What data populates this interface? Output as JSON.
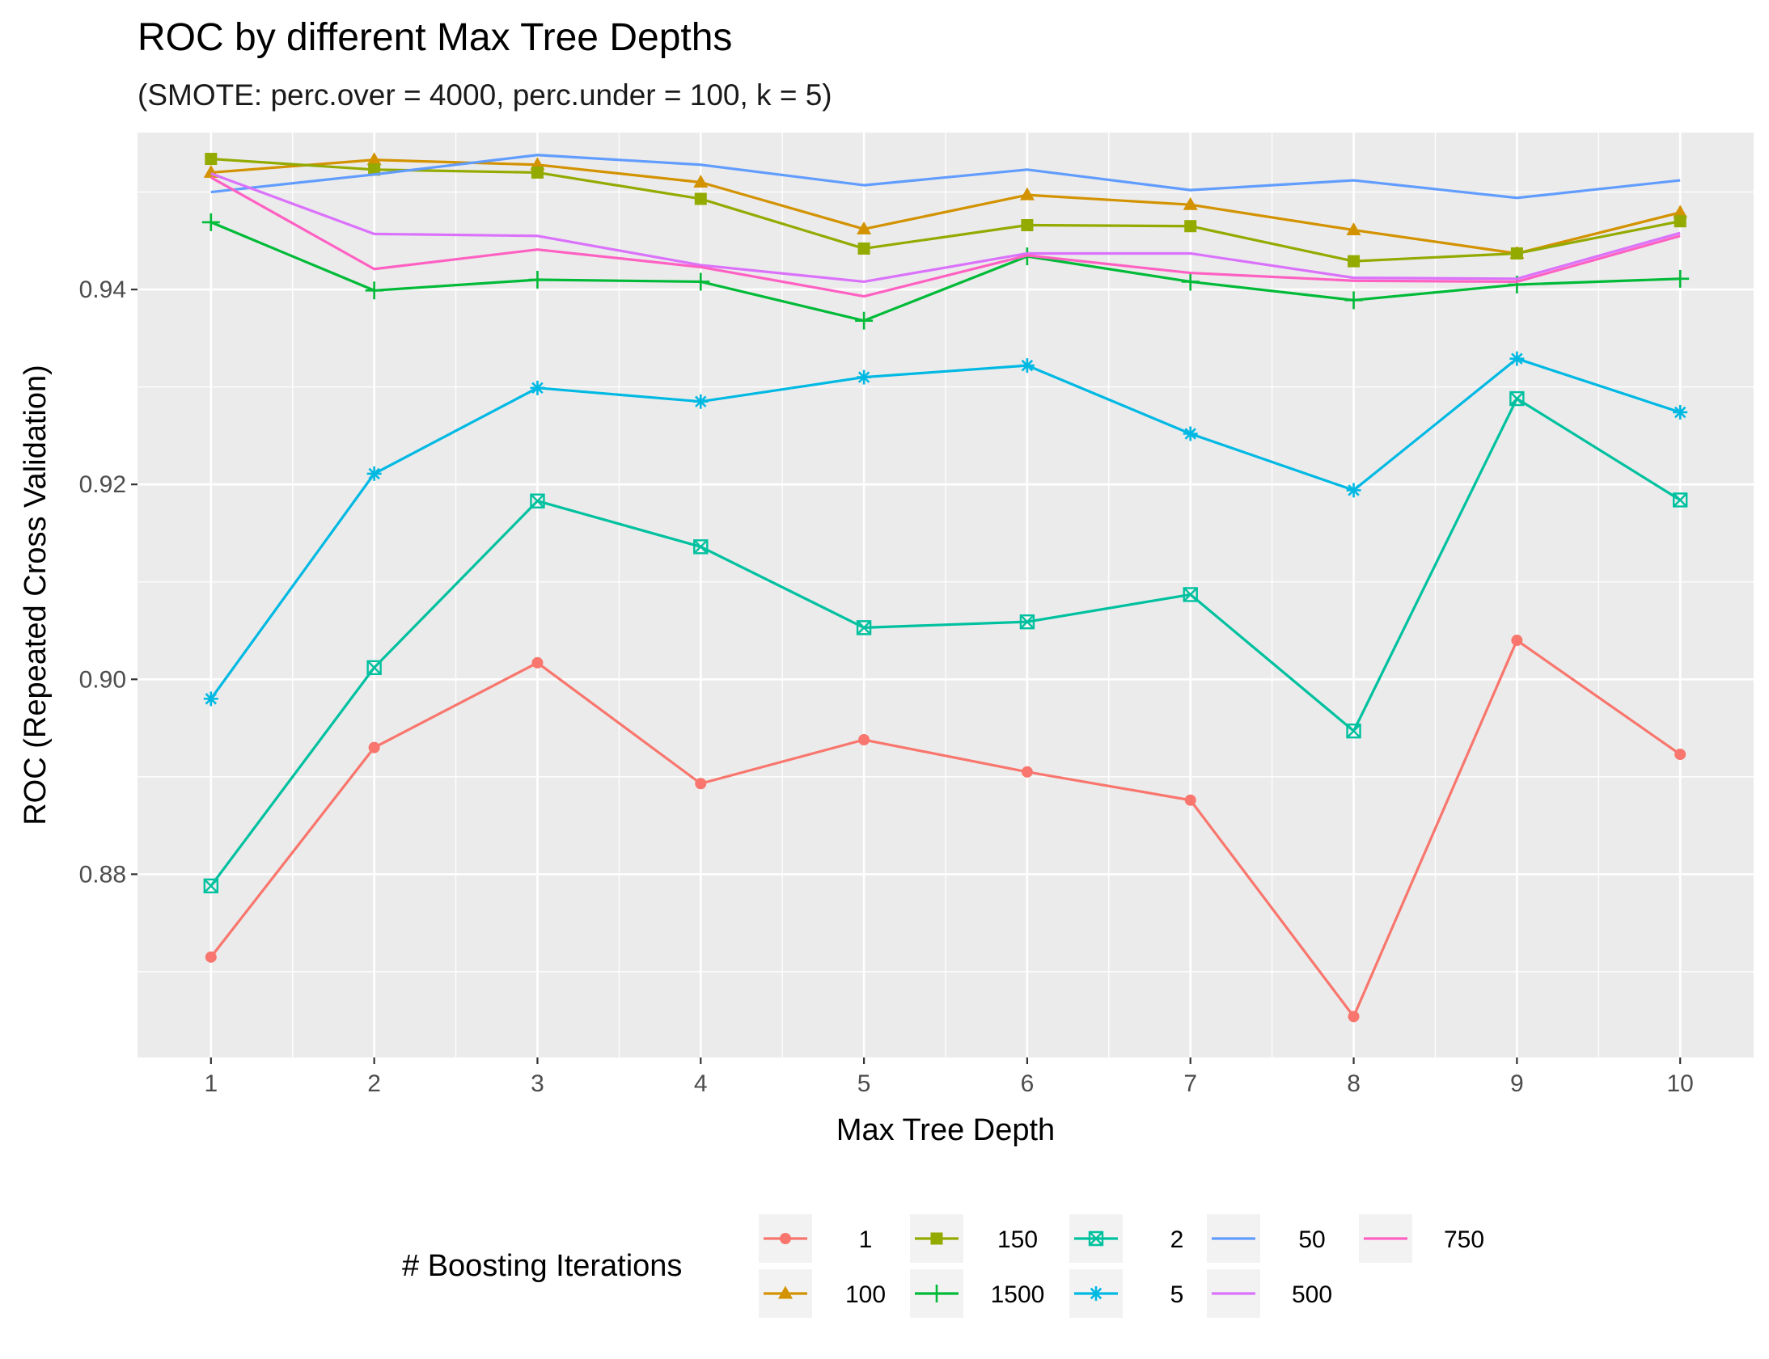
{
  "chart_data": {
    "type": "line",
    "title": "ROC by different Max Tree Depths",
    "subtitle": "(SMOTE: perc.over = 4000, perc.under = 100, k = 5)",
    "xlabel": "Max Tree Depth",
    "ylabel": "ROC (Repeated Cross Validation)",
    "x": [
      1,
      2,
      3,
      4,
      5,
      6,
      7,
      8,
      9,
      10
    ],
    "x_ticks": [
      "1",
      "2",
      "3",
      "4",
      "5",
      "6",
      "7",
      "8",
      "9",
      "10"
    ],
    "y_ticks": [
      "0.88",
      "0.90",
      "0.92",
      "0.94"
    ],
    "y_tick_values": [
      0.88,
      0.9,
      0.92,
      0.94
    ],
    "xlim": [
      0.55,
      10.45
    ],
    "ylim": [
      0.8612,
      0.9561
    ],
    "grid": true,
    "legend": {
      "title": "# Boosting Iterations",
      "position": "bottom",
      "columns": [
        [
          "1",
          "100"
        ],
        [
          "150",
          "1500"
        ],
        [
          "2",
          "5"
        ],
        [
          "50",
          "500"
        ],
        [
          "750"
        ]
      ]
    },
    "series": [
      {
        "name": "1",
        "color": "#F8766D",
        "shape": "circle",
        "values": [
          0.8715,
          0.893,
          0.9017,
          0.8893,
          0.8938,
          0.8905,
          0.8876,
          0.8654,
          0.904,
          0.8923
        ]
      },
      {
        "name": "100",
        "color": "#D39200",
        "shape": "triangle",
        "values": [
          0.952,
          0.9533,
          0.9528,
          0.951,
          0.9462,
          0.9497,
          0.9487,
          0.9461,
          0.9437,
          0.9479
        ]
      },
      {
        "name": "150",
        "color": "#93AA00",
        "shape": "square",
        "values": [
          0.9534,
          0.9523,
          0.952,
          0.9493,
          0.9442,
          0.9466,
          0.9465,
          0.9429,
          0.9437,
          0.947
        ]
      },
      {
        "name": "1500",
        "color": "#00BA38",
        "shape": "plus",
        "values": [
          0.9469,
          0.9399,
          0.941,
          0.9408,
          0.9368,
          0.9434,
          0.9408,
          0.9389,
          0.9405,
          0.9411
        ]
      },
      {
        "name": "2",
        "color": "#00C19F",
        "shape": "square-cross",
        "values": [
          0.8788,
          0.9012,
          0.9183,
          0.9136,
          0.9053,
          0.9059,
          0.9087,
          0.8947,
          0.9288,
          0.9184
        ]
      },
      {
        "name": "5",
        "color": "#00B9E3",
        "shape": "asterisk",
        "values": [
          0.898,
          0.9211,
          0.9299,
          0.9285,
          0.931,
          0.9322,
          0.9252,
          0.9194,
          0.9329,
          0.9274
        ]
      },
      {
        "name": "50",
        "color": "#619CFF",
        "shape": "none",
        "values": [
          0.95,
          0.9518,
          0.9538,
          0.9528,
          0.9507,
          0.9523,
          0.9502,
          0.9512,
          0.9494,
          0.9512
        ]
      },
      {
        "name": "500",
        "color": "#DB72FB",
        "shape": "none",
        "values": [
          0.9519,
          0.9457,
          0.9455,
          0.9425,
          0.9408,
          0.9437,
          0.9437,
          0.9412,
          0.9411,
          0.9458
        ]
      },
      {
        "name": "750",
        "color": "#FF61C3",
        "shape": "none",
        "values": [
          0.9515,
          0.9421,
          0.9441,
          0.9423,
          0.9393,
          0.9435,
          0.9417,
          0.9409,
          0.9408,
          0.9455
        ]
      }
    ]
  }
}
